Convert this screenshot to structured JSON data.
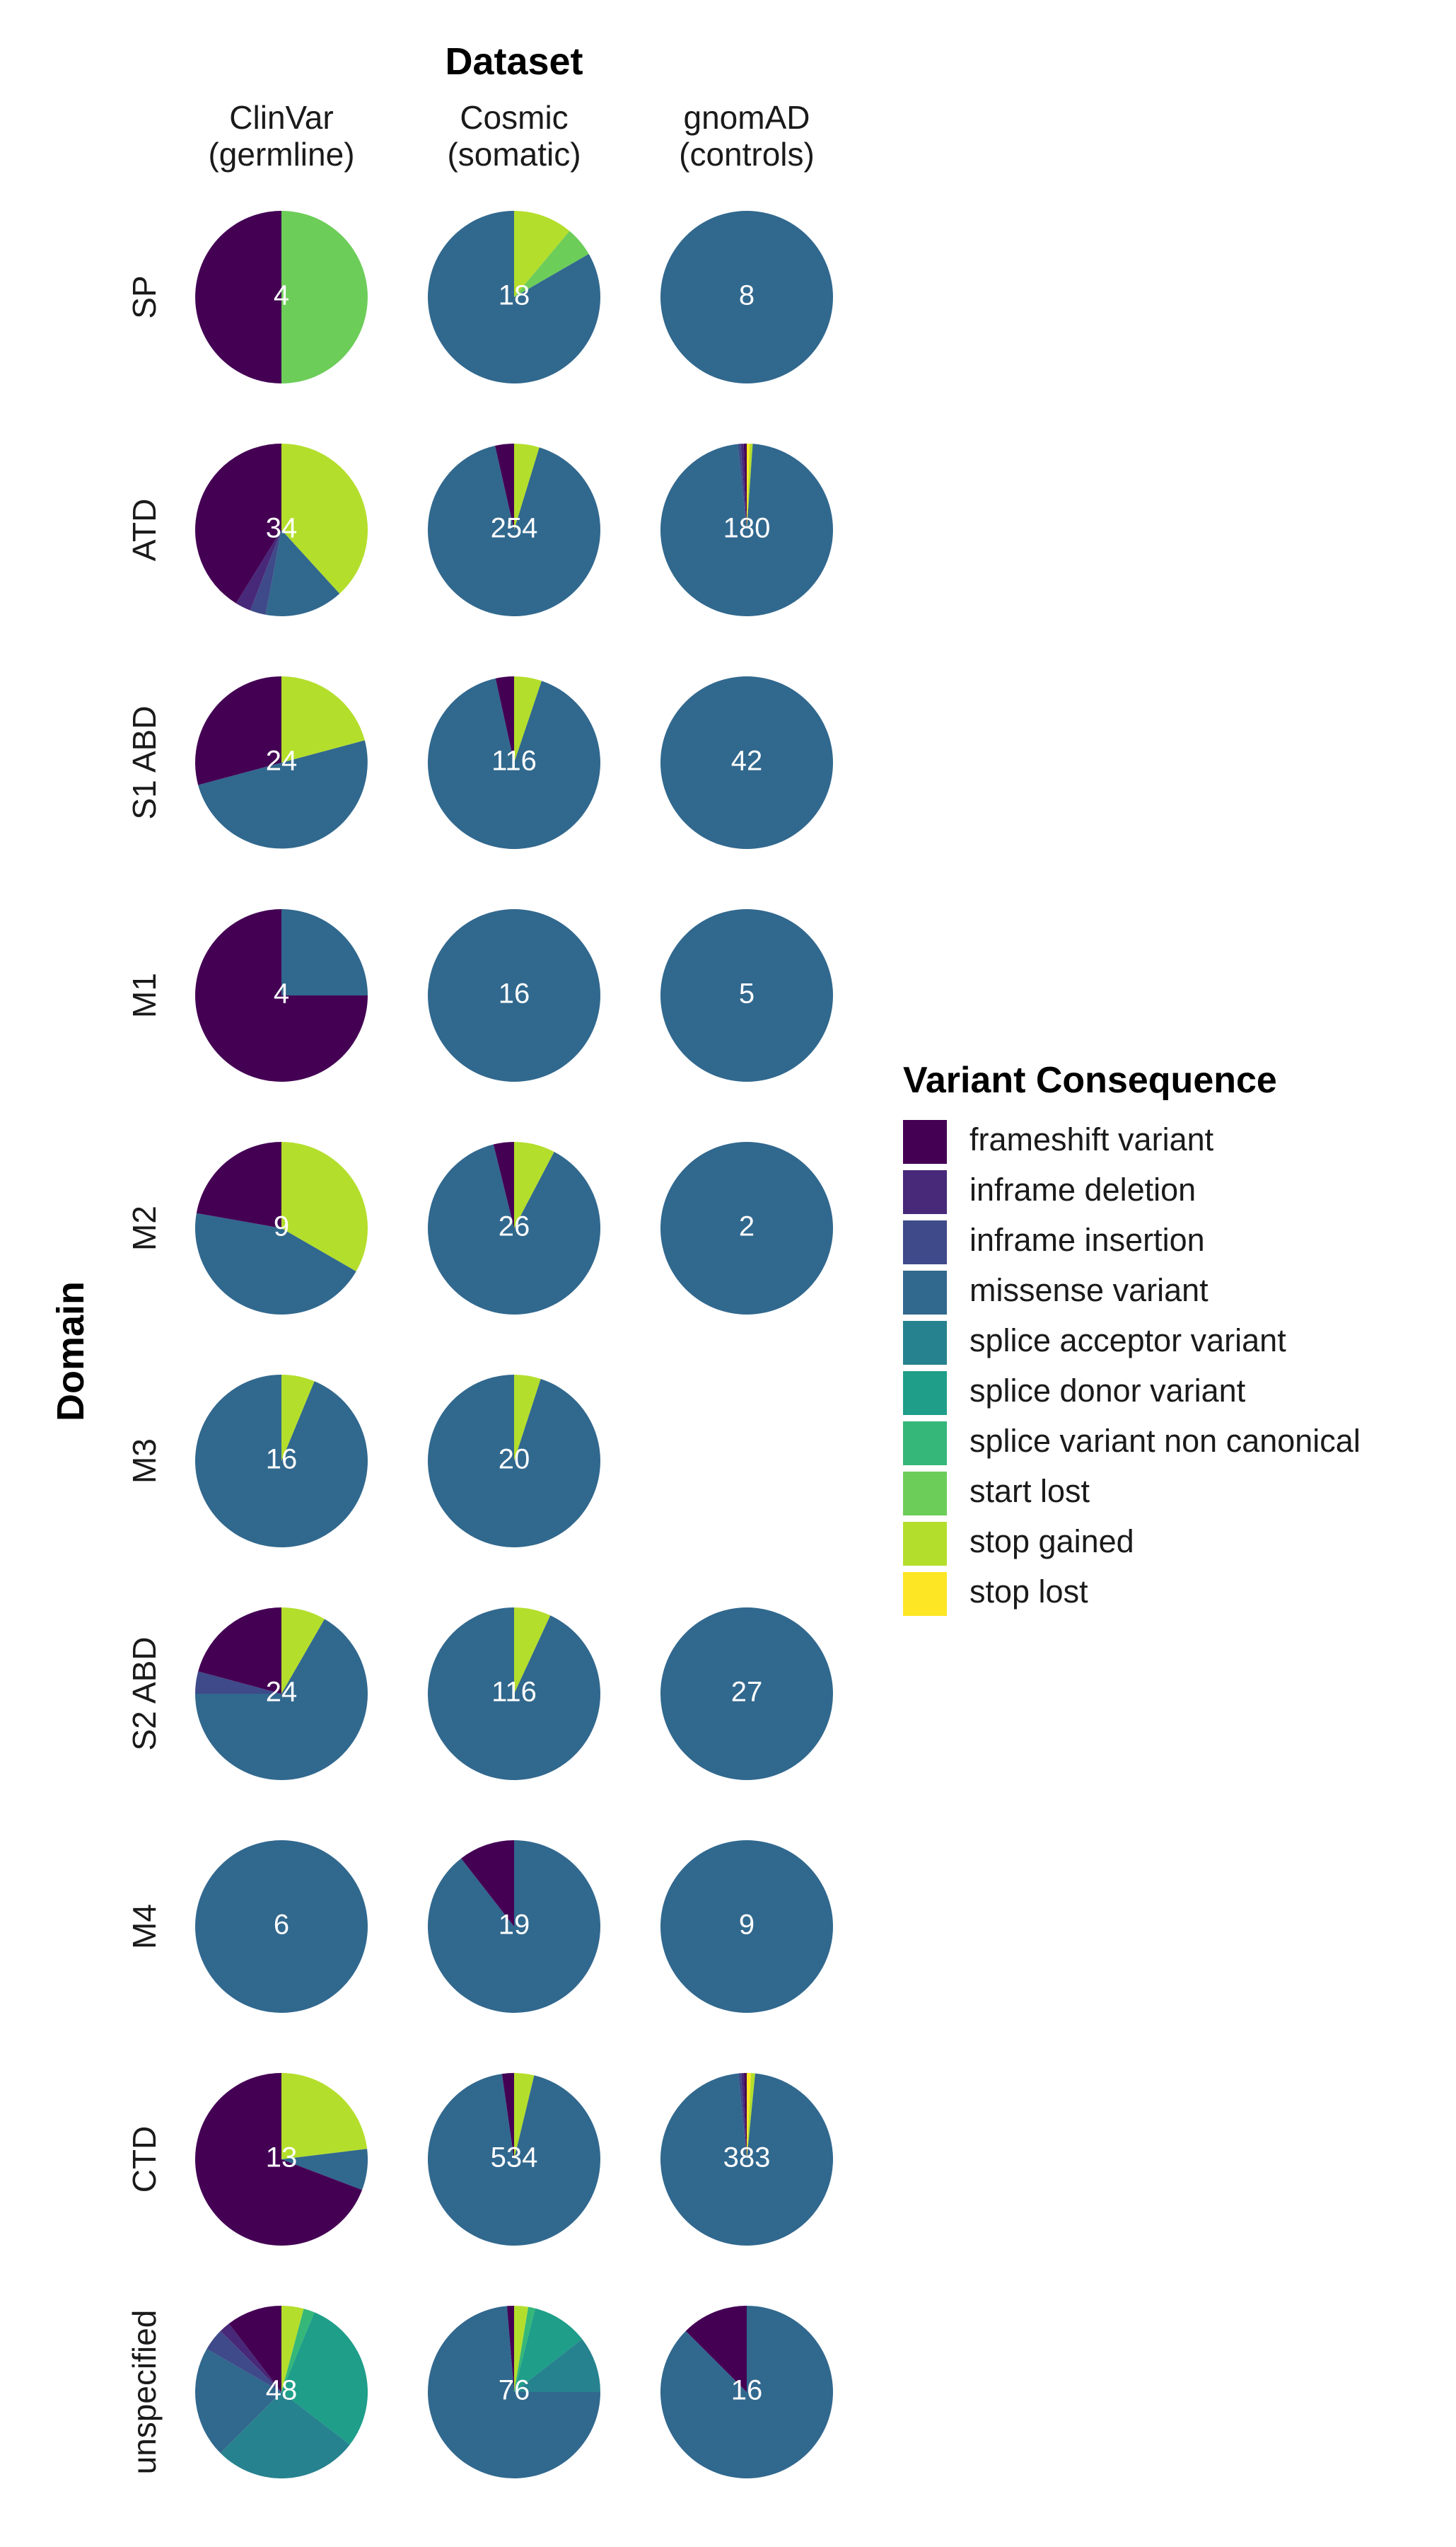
{
  "chart_data": {
    "type": "pie",
    "title": "Dataset",
    "ylabel": "Domain",
    "columns": [
      {
        "line1": "ClinVar",
        "line2": "(germline)"
      },
      {
        "line1": "Cosmic",
        "line2": "(somatic)"
      },
      {
        "line1": "gnomAD",
        "line2": "(controls)"
      }
    ],
    "rows": [
      "SP",
      "ATD",
      "S1 ABD",
      "M1",
      "M2",
      "M3",
      "S2 ABD",
      "M4",
      "CTD",
      "unspecified"
    ],
    "legend": {
      "title": "Variant Consequence",
      "position": "right",
      "items": [
        {
          "name": "frameshift variant",
          "color": "#440154"
        },
        {
          "name": "inframe deletion",
          "color": "#482878"
        },
        {
          "name": "inframe insertion",
          "color": "#3E4A89"
        },
        {
          "name": "missense variant",
          "color": "#31688E"
        },
        {
          "name": "splice acceptor variant",
          "color": "#26828E"
        },
        {
          "name": "splice donor variant",
          "color": "#1F9E89"
        },
        {
          "name": "splice variant non canonical",
          "color": "#35B779"
        },
        {
          "name": "start lost",
          "color": "#6DCD59"
        },
        {
          "name": "stop gained",
          "color": "#B4DE2C"
        },
        {
          "name": "stop lost",
          "color": "#FDE725"
        }
      ]
    },
    "pies": [
      {
        "row": 0,
        "col": 0,
        "total": 4,
        "slices": [
          {
            "cat": "start lost",
            "value": 2
          },
          {
            "cat": "frameshift variant",
            "value": 2
          }
        ]
      },
      {
        "row": 0,
        "col": 1,
        "total": 18,
        "slices": [
          {
            "cat": "stop gained",
            "value": 2
          },
          {
            "cat": "start lost",
            "value": 1
          },
          {
            "cat": "missense variant",
            "value": 15
          }
        ]
      },
      {
        "row": 0,
        "col": 2,
        "total": 8,
        "slices": [
          {
            "cat": "missense variant",
            "value": 8
          }
        ]
      },
      {
        "row": 1,
        "col": 0,
        "total": 34,
        "slices": [
          {
            "cat": "stop gained",
            "value": 13
          },
          {
            "cat": "missense variant",
            "value": 5
          },
          {
            "cat": "inframe insertion",
            "value": 1
          },
          {
            "cat": "inframe deletion",
            "value": 1
          },
          {
            "cat": "frameshift variant",
            "value": 14
          }
        ]
      },
      {
        "row": 1,
        "col": 1,
        "total": 254,
        "slices": [
          {
            "cat": "stop gained",
            "value": 12
          },
          {
            "cat": "missense variant",
            "value": 233
          },
          {
            "cat": "frameshift variant",
            "value": 9
          }
        ]
      },
      {
        "row": 1,
        "col": 2,
        "total": 180,
        "slices": [
          {
            "cat": "stop lost",
            "value": 1
          },
          {
            "cat": "stop gained",
            "value": 1
          },
          {
            "cat": "missense variant",
            "value": 175
          },
          {
            "cat": "inframe insertion",
            "value": 1
          },
          {
            "cat": "inframe deletion",
            "value": 1
          },
          {
            "cat": "frameshift variant",
            "value": 1
          }
        ]
      },
      {
        "row": 2,
        "col": 0,
        "total": 24,
        "slices": [
          {
            "cat": "stop gained",
            "value": 5
          },
          {
            "cat": "missense variant",
            "value": 12
          },
          {
            "cat": "frameshift variant",
            "value": 7
          }
        ]
      },
      {
        "row": 2,
        "col": 1,
        "total": 116,
        "slices": [
          {
            "cat": "stop gained",
            "value": 6
          },
          {
            "cat": "missense variant",
            "value": 106
          },
          {
            "cat": "frameshift variant",
            "value": 4
          }
        ]
      },
      {
        "row": 2,
        "col": 2,
        "total": 42,
        "slices": [
          {
            "cat": "missense variant",
            "value": 42
          }
        ]
      },
      {
        "row": 3,
        "col": 0,
        "total": 4,
        "slices": [
          {
            "cat": "missense variant",
            "value": 1
          },
          {
            "cat": "frameshift variant",
            "value": 3
          }
        ]
      },
      {
        "row": 3,
        "col": 1,
        "total": 16,
        "slices": [
          {
            "cat": "missense variant",
            "value": 16
          }
        ]
      },
      {
        "row": 3,
        "col": 2,
        "total": 5,
        "slices": [
          {
            "cat": "missense variant",
            "value": 5
          }
        ]
      },
      {
        "row": 4,
        "col": 0,
        "total": 9,
        "slices": [
          {
            "cat": "stop gained",
            "value": 3
          },
          {
            "cat": "missense variant",
            "value": 4
          },
          {
            "cat": "frameshift variant",
            "value": 2
          }
        ]
      },
      {
        "row": 4,
        "col": 1,
        "total": 26,
        "slices": [
          {
            "cat": "stop gained",
            "value": 2
          },
          {
            "cat": "missense variant",
            "value": 23
          },
          {
            "cat": "frameshift variant",
            "value": 1
          }
        ]
      },
      {
        "row": 4,
        "col": 2,
        "total": 2,
        "slices": [
          {
            "cat": "missense variant",
            "value": 2
          }
        ]
      },
      {
        "row": 5,
        "col": 0,
        "total": 16,
        "slices": [
          {
            "cat": "stop gained",
            "value": 1
          },
          {
            "cat": "missense variant",
            "value": 15
          }
        ]
      },
      {
        "row": 5,
        "col": 1,
        "total": 20,
        "slices": [
          {
            "cat": "stop gained",
            "value": 1
          },
          {
            "cat": "missense variant",
            "value": 19
          }
        ]
      },
      {
        "row": 6,
        "col": 0,
        "total": 24,
        "slices": [
          {
            "cat": "stop gained",
            "value": 2
          },
          {
            "cat": "missense variant",
            "value": 16
          },
          {
            "cat": "inframe insertion",
            "value": 1
          },
          {
            "cat": "frameshift variant",
            "value": 5
          }
        ]
      },
      {
        "row": 6,
        "col": 1,
        "total": 116,
        "slices": [
          {
            "cat": "stop gained",
            "value": 8
          },
          {
            "cat": "missense variant",
            "value": 108
          }
        ]
      },
      {
        "row": 6,
        "col": 2,
        "total": 27,
        "slices": [
          {
            "cat": "missense variant",
            "value": 27
          }
        ]
      },
      {
        "row": 7,
        "col": 0,
        "total": 6,
        "slices": [
          {
            "cat": "missense variant",
            "value": 6
          }
        ]
      },
      {
        "row": 7,
        "col": 1,
        "total": 19,
        "slices": [
          {
            "cat": "missense variant",
            "value": 17
          },
          {
            "cat": "frameshift variant",
            "value": 2
          }
        ]
      },
      {
        "row": 7,
        "col": 2,
        "total": 9,
        "slices": [
          {
            "cat": "missense variant",
            "value": 9
          }
        ]
      },
      {
        "row": 8,
        "col": 0,
        "total": 13,
        "slices": [
          {
            "cat": "stop gained",
            "value": 3
          },
          {
            "cat": "missense variant",
            "value": 1
          },
          {
            "cat": "frameshift variant",
            "value": 9
          }
        ]
      },
      {
        "row": 8,
        "col": 1,
        "total": 534,
        "slices": [
          {
            "cat": "stop gained",
            "value": 20
          },
          {
            "cat": "missense variant",
            "value": 502
          },
          {
            "cat": "frameshift variant",
            "value": 12
          }
        ]
      },
      {
        "row": 8,
        "col": 2,
        "total": 383,
        "slices": [
          {
            "cat": "stop lost",
            "value": 3
          },
          {
            "cat": "stop gained",
            "value": 3
          },
          {
            "cat": "missense variant",
            "value": 371
          },
          {
            "cat": "inframe insertion",
            "value": 2
          },
          {
            "cat": "inframe deletion",
            "value": 2
          },
          {
            "cat": "frameshift variant",
            "value": 2
          }
        ]
      },
      {
        "row": 9,
        "col": 0,
        "total": 48,
        "slices": [
          {
            "cat": "stop gained",
            "value": 2
          },
          {
            "cat": "splice variant non canonical",
            "value": 1
          },
          {
            "cat": "splice donor variant",
            "value": 14
          },
          {
            "cat": "splice acceptor variant",
            "value": 13
          },
          {
            "cat": "missense variant",
            "value": 10
          },
          {
            "cat": "inframe insertion",
            "value": 2
          },
          {
            "cat": "inframe deletion",
            "value": 1
          },
          {
            "cat": "frameshift variant",
            "value": 5
          }
        ]
      },
      {
        "row": 9,
        "col": 1,
        "total": 76,
        "slices": [
          {
            "cat": "stop gained",
            "value": 2
          },
          {
            "cat": "splice variant non canonical",
            "value": 1
          },
          {
            "cat": "splice donor variant",
            "value": 8
          },
          {
            "cat": "splice acceptor variant",
            "value": 8
          },
          {
            "cat": "missense variant",
            "value": 56
          },
          {
            "cat": "frameshift variant",
            "value": 1
          }
        ]
      },
      {
        "row": 9,
        "col": 2,
        "total": 16,
        "slices": [
          {
            "cat": "missense variant",
            "value": 14
          },
          {
            "cat": "frameshift variant",
            "value": 2
          }
        ]
      }
    ]
  }
}
